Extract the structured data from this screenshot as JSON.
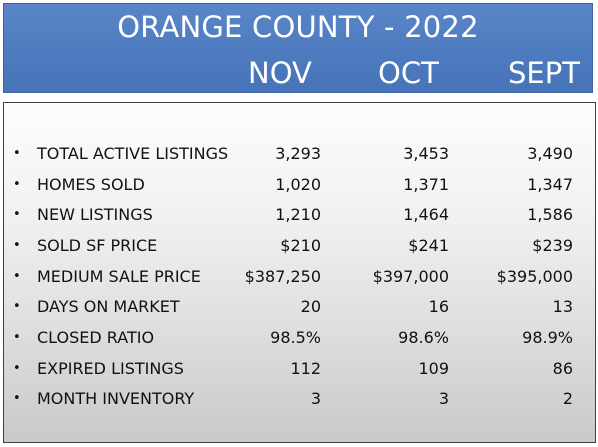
{
  "header": {
    "title": "ORANGE COUNTY - 2022",
    "columns": [
      "NOV",
      "OCT",
      "SEPT"
    ]
  },
  "colors": {
    "header_blue": "#4f7cc0",
    "header_text": "#ffffff",
    "body_text": "#111111"
  },
  "bullet_glyph": "•",
  "rows": [
    {
      "label": "TOTAL ACTIVE  LISTINGS",
      "nov": "3,293",
      "oct": "3,453",
      "sept": "3,490"
    },
    {
      "label": "HOMES SOLD",
      "nov": "1,020",
      "oct": "1,371",
      "sept": "1,347"
    },
    {
      "label": "NEW  LISTINGS",
      "nov": "1,210",
      "oct": "1,464",
      "sept": "1,586"
    },
    {
      "label": "SOLD SF PRICE",
      "nov": "$210",
      "oct": "$241",
      "sept": "$239"
    },
    {
      "label": "MEDIUM SALE PRICE",
      "nov": "$387,250",
      "oct": "$397,000",
      "sept": "$395,000"
    },
    {
      "label": "DAYS ON MARKET",
      "nov": "20",
      "oct": "16",
      "sept": "13"
    },
    {
      "label": "CLOSED RATIO",
      "nov": "98.5%",
      "oct": "98.6%",
      "sept": "98.9%"
    },
    {
      "label": "EXPIRED  LISTINGS",
      "nov": "112",
      "oct": "109",
      "sept": "86"
    },
    {
      "label": "MONTH INVENTORY",
      "nov": "3",
      "oct": "3",
      "sept": "2"
    }
  ]
}
